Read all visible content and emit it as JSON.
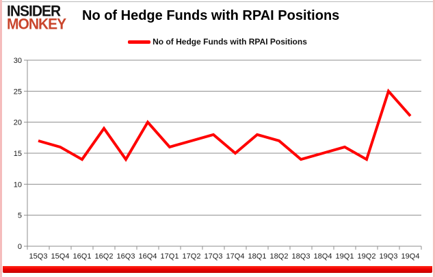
{
  "logo": {
    "line1": "INSIDER",
    "line2": "MONKEY"
  },
  "header": {
    "title": "No of Hedge Funds with RPAI Positions"
  },
  "legend": {
    "label": "No of Hedge Funds with RPAI Positions"
  },
  "chart_data": {
    "type": "line",
    "title": "No of Hedge Funds with RPAI Positions",
    "categories": [
      "15Q3",
      "15Q4",
      "16Q1",
      "16Q2",
      "16Q3",
      "16Q4",
      "17Q1",
      "17Q2",
      "17Q3",
      "17Q4",
      "18Q1",
      "18Q2",
      "18Q3",
      "18Q4",
      "19Q1",
      "19Q2",
      "19Q3",
      "19Q4"
    ],
    "series": [
      {
        "name": "No of Hedge Funds with RPAI Positions",
        "values": [
          17,
          16,
          14,
          19,
          14,
          20,
          16,
          17,
          18,
          15,
          18,
          17,
          14,
          15,
          16,
          14,
          25,
          21
        ]
      }
    ],
    "xlabel": "",
    "ylabel": "",
    "ylim": [
      0,
      30
    ],
    "ytick_step": 5,
    "grid": true,
    "legend_position": "top"
  },
  "colors": {
    "line_red": "#ff0000",
    "logo_red": "#c9452c",
    "bottom_bar_red": "#ee0000",
    "border_pink": "#f5bcbc",
    "grid_gray": "#8c8c8c",
    "tick_text": "#1a1a1a"
  }
}
